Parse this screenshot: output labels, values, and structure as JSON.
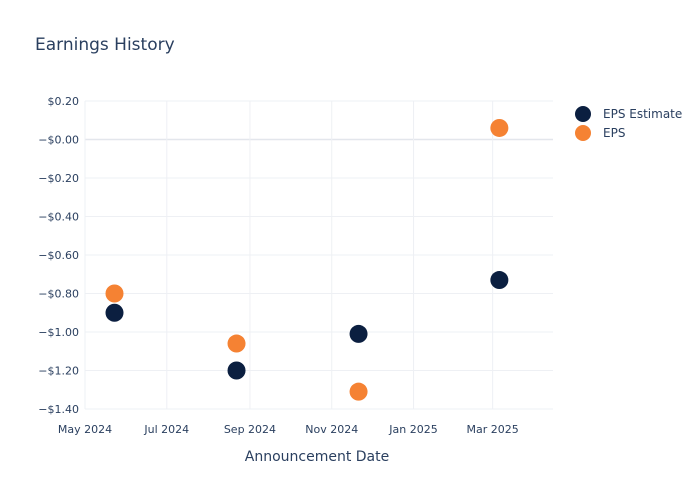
{
  "chart_data": {
    "type": "scatter",
    "title": "Earnings History",
    "xlabel": "Announcement Date",
    "ylabel": "",
    "x_ticks": [
      {
        "date": "2024-05-01",
        "label": "May 2024"
      },
      {
        "date": "2024-07-01",
        "label": "Jul 2024"
      },
      {
        "date": "2024-09-01",
        "label": "Sep 2024"
      },
      {
        "date": "2024-11-01",
        "label": "Nov 2024"
      },
      {
        "date": "2025-01-01",
        "label": "Jan 2025"
      },
      {
        "date": "2025-03-01",
        "label": "Mar 2025"
      }
    ],
    "y_ticks": [
      {
        "value": 0.2,
        "label": "$0.20"
      },
      {
        "value": 0.0,
        "label": "−$0.00"
      },
      {
        "value": -0.2,
        "label": "−$0.20"
      },
      {
        "value": -0.4,
        "label": "−$0.40"
      },
      {
        "value": -0.6,
        "label": "−$0.60"
      },
      {
        "value": -0.8,
        "label": "−$0.80"
      },
      {
        "value": -1.0,
        "label": "−$1.00"
      },
      {
        "value": -1.2,
        "label": "−$1.20"
      },
      {
        "value": -1.4,
        "label": "−$1.40"
      }
    ],
    "xlim": [
      "2024-05-01",
      "2025-04-15"
    ],
    "ylim": [
      -1.4,
      0.2
    ],
    "grid": true,
    "legend_position": "top-right",
    "series": [
      {
        "name": "EPS Estimate",
        "color": "#0b1f40",
        "points": [
          {
            "x": "2024-05-23",
            "y": -0.9
          },
          {
            "x": "2024-08-22",
            "y": -1.2
          },
          {
            "x": "2024-11-21",
            "y": -1.01
          },
          {
            "x": "2025-03-06",
            "y": -0.73
          }
        ]
      },
      {
        "name": "EPS",
        "color": "#f58233",
        "points": [
          {
            "x": "2024-05-23",
            "y": -0.8
          },
          {
            "x": "2024-08-22",
            "y": -1.06
          },
          {
            "x": "2024-11-21",
            "y": -1.31
          },
          {
            "x": "2025-03-06",
            "y": 0.06
          }
        ]
      }
    ]
  }
}
